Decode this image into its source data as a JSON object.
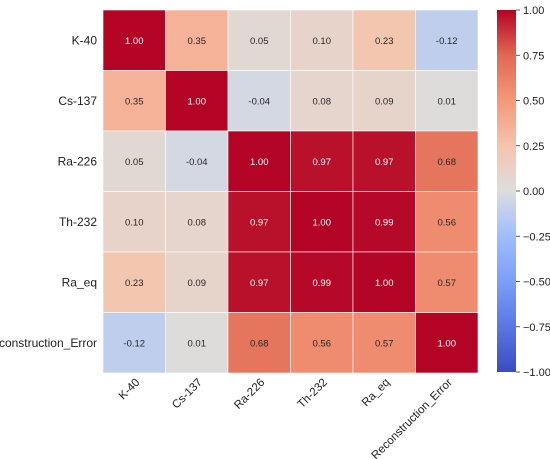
{
  "chart_data": {
    "type": "heatmap",
    "title": "",
    "xlabel": "",
    "ylabel": "",
    "rows": [
      "K-40",
      "Cs-137",
      "Ra-226",
      "Th-232",
      "Ra_eq",
      "Reconstruction_Error"
    ],
    "columns": [
      "K-40",
      "Cs-137",
      "Ra-226",
      "Th-232",
      "Ra_eq",
      "Reconstruction_Error"
    ],
    "values": [
      [
        1.0,
        0.35,
        0.05,
        0.1,
        0.23,
        -0.12
      ],
      [
        0.35,
        1.0,
        -0.04,
        0.08,
        0.09,
        0.01
      ],
      [
        0.05,
        -0.04,
        1.0,
        0.97,
        0.97,
        0.68
      ],
      [
        0.1,
        0.08,
        0.97,
        1.0,
        0.99,
        0.56
      ],
      [
        0.23,
        0.09,
        0.97,
        0.99,
        1.0,
        0.57
      ],
      [
        -0.12,
        0.01,
        0.68,
        0.56,
        0.57,
        1.0
      ]
    ],
    "value_labels": [
      [
        "1.00",
        "0.35",
        "0.05",
        "0.10",
        "0.23",
        "-0.12"
      ],
      [
        "0.35",
        "1.00",
        "-0.04",
        "0.08",
        "0.09",
        "0.01"
      ],
      [
        "0.05",
        "-0.04",
        "1.00",
        "0.97",
        "0.97",
        "0.68"
      ],
      [
        "0.10",
        "0.08",
        "0.97",
        "1.00",
        "0.99",
        "0.56"
      ],
      [
        "0.23",
        "0.09",
        "0.97",
        "0.99",
        "1.00",
        "0.57"
      ],
      [
        "-0.12",
        "0.01",
        "0.68",
        "0.56",
        "0.57",
        "1.00"
      ]
    ],
    "colorbar": {
      "range": [
        -1.0,
        1.0
      ],
      "ticks": [
        1.0,
        0.75,
        0.5,
        0.25,
        0.0,
        -0.25,
        -0.5,
        -0.75,
        -1.0
      ],
      "tick_labels": [
        "1.00",
        "0.75",
        "0.50",
        "0.25",
        "0.00",
        "−0.25",
        "−0.50",
        "−0.75",
        "−1.00"
      ],
      "colormap": "coolwarm",
      "placement": "right"
    },
    "grid": false,
    "colors": {
      "low": "#3b4cc0",
      "mid": "#dddddd",
      "high": "#b40426"
    }
  }
}
